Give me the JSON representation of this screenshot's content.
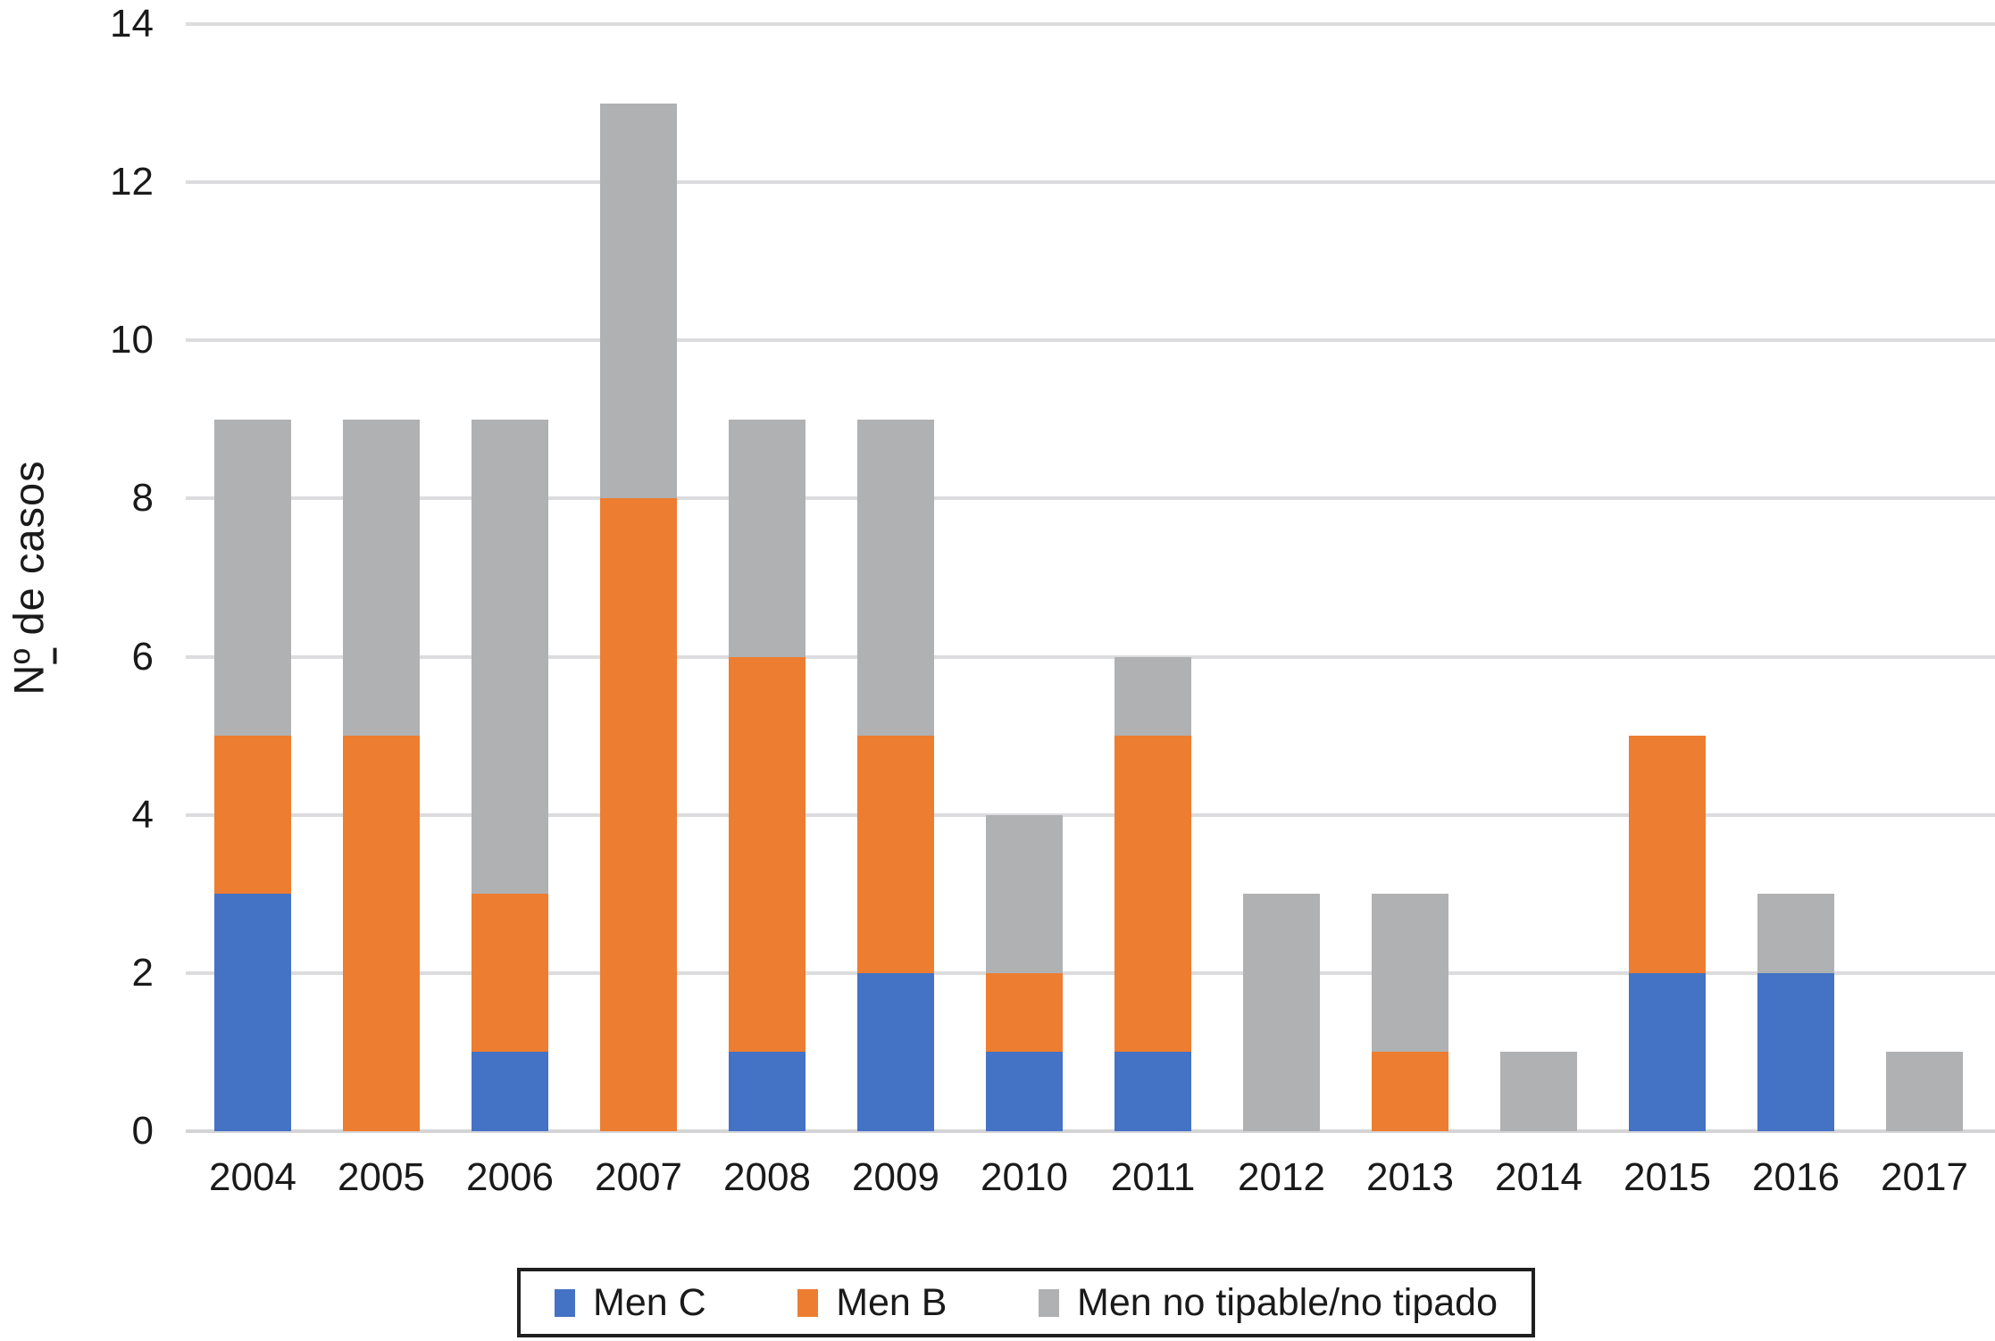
{
  "figure": {
    "ylabel_parts": {
      "prefix": "N",
      "ordinal": "º",
      "suffix": " de casos"
    }
  },
  "colors": {
    "men_c": "#4472C4",
    "men_b": "#ED7D31",
    "men_nt": "#AFB1B3",
    "gridline": "#DCDCDE",
    "text": "#1A1A1A"
  },
  "chart_data": {
    "type": "bar",
    "stacked": true,
    "title": "",
    "xlabel": "",
    "ylabel": "Nº de casos",
    "ylim": [
      0,
      14
    ],
    "yticks": [
      0,
      2,
      4,
      6,
      8,
      10,
      12,
      14
    ],
    "grid": true,
    "legend_position": "bottom",
    "categories": [
      "2004",
      "2005",
      "2006",
      "2007",
      "2008",
      "2009",
      "2010",
      "2011",
      "2012",
      "2013",
      "2014",
      "2015",
      "2016",
      "2017"
    ],
    "series": [
      {
        "name": "Men C",
        "color": "#4472C4",
        "values": [
          3,
          0,
          1,
          0,
          1,
          2,
          1,
          1,
          0,
          0,
          0,
          2,
          2,
          0
        ]
      },
      {
        "name": "Men B",
        "color": "#ED7D31",
        "values": [
          2,
          5,
          2,
          8,
          5,
          3,
          1,
          4,
          0,
          1,
          0,
          3,
          0,
          0
        ]
      },
      {
        "name": "Men no tipable/no tipado",
        "color": "#AFB1B3",
        "values": [
          4,
          4,
          6,
          5,
          3,
          4,
          2,
          1,
          3,
          2,
          1,
          0,
          1,
          1
        ]
      }
    ],
    "totals": [
      9,
      9,
      9,
      13,
      9,
      9,
      4,
      6,
      3,
      3,
      1,
      5,
      3,
      1
    ]
  }
}
